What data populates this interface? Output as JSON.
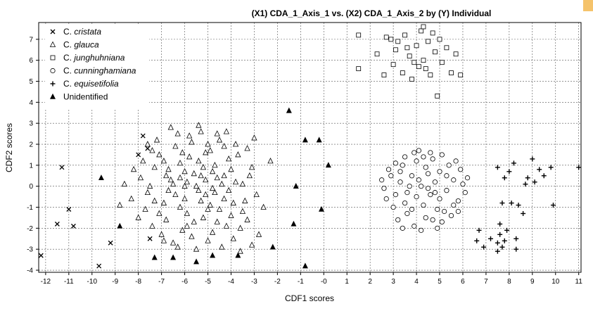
{
  "chart_data": {
    "type": "scatter",
    "title": "(X1) CDA_1_Axis_1 vs. (X2) CDA_1_Axis_2 by (Y) Individual",
    "xlabel": "CDF1 scores",
    "ylabel": "CDF2 scores",
    "xlim": [
      -12.3,
      11.1
    ],
    "ylim": [
      -4.1,
      7.8
    ],
    "xticks": [
      -12,
      -11,
      -10,
      -9,
      -8,
      -7,
      -6,
      -5,
      -4,
      -3,
      -2,
      -1,
      0,
      1,
      2,
      3,
      4,
      5,
      6,
      7,
      8,
      9,
      10,
      11
    ],
    "xtick_labels": [
      "-12",
      "-11",
      "-10",
      "-9",
      "-8",
      "-7",
      "-6",
      "-5",
      "-4",
      "-3",
      "-2",
      "-1",
      "-0",
      "1",
      "2",
      "3",
      "4",
      "5",
      "6",
      "7",
      "8",
      "9",
      "10",
      "11"
    ],
    "yticks": [
      -4,
      -3,
      -2,
      -1,
      0,
      1,
      2,
      3,
      4,
      5,
      6,
      7
    ],
    "grid": true,
    "legend_position": "top-left",
    "series": [
      {
        "name": "C. cristata",
        "marker": "x",
        "points": [
          [
            -11.3,
            0.9
          ],
          [
            -11.5,
            -1.8
          ],
          [
            -11.0,
            -1.1
          ],
          [
            -10.8,
            -1.9
          ],
          [
            -12.2,
            -3.3
          ],
          [
            -9.7,
            -3.8
          ],
          [
            -9.2,
            -2.7
          ],
          [
            -8.0,
            1.5
          ],
          [
            -7.8,
            2.4
          ],
          [
            -7.5,
            -2.5
          ],
          [
            -7.6,
            1.8
          ]
        ]
      },
      {
        "name": "C. glauca",
        "marker": "triangle",
        "points": [
          [
            -5.4,
            -0.2
          ],
          [
            -6.2,
            1.1
          ],
          [
            -4.8,
            0.7
          ],
          [
            -5.9,
            -1.3
          ],
          [
            -6.6,
            0.3
          ],
          [
            -4.3,
            -0.6
          ],
          [
            -5.1,
            1.6
          ],
          [
            -6.9,
            -0.8
          ],
          [
            -5.7,
            2.1
          ],
          [
            -4.6,
            -1.7
          ],
          [
            -7.3,
            0.9
          ],
          [
            -3.8,
            0.2
          ],
          [
            -6.1,
            -2.1
          ],
          [
            -5.3,
            2.6
          ],
          [
            -4.1,
            1.3
          ],
          [
            -7.6,
            -0.3
          ],
          [
            -3.5,
            -1.2
          ],
          [
            -6.4,
            1.9
          ],
          [
            -5.0,
            -2.6
          ],
          [
            -4.5,
            2.2
          ],
          [
            -7.9,
            0.4
          ],
          [
            -3.1,
            0.9
          ],
          [
            -6.8,
            -1.6
          ],
          [
            -5.6,
            0.6
          ],
          [
            -4.9,
            -0.9
          ],
          [
            -6.0,
            0.0
          ],
          [
            -5.2,
            -1.5
          ],
          [
            -4.4,
            0.1
          ],
          [
            -7.1,
            1.5
          ],
          [
            -3.6,
            -2.0
          ],
          [
            -6.5,
            -2.7
          ],
          [
            -5.8,
            1.4
          ],
          [
            -4.0,
            -1.4
          ],
          [
            -7.4,
            -1.9
          ],
          [
            -3.3,
            1.8
          ],
          [
            -5.5,
            -3.0
          ],
          [
            -6.3,
            2.5
          ],
          [
            -4.7,
            1.0
          ],
          [
            -8.3,
            -0.6
          ],
          [
            -2.9,
            -0.4
          ],
          [
            -6.7,
            0.8
          ],
          [
            -5.1,
            0.3
          ],
          [
            -4.2,
            2.6
          ],
          [
            -7.7,
            -1.1
          ],
          [
            -3.9,
            -2.5
          ],
          [
            -6.0,
            -0.6
          ],
          [
            -5.4,
            1.2
          ],
          [
            -4.8,
            -2.2
          ],
          [
            -7.2,
            2.2
          ],
          [
            -3.2,
            0.5
          ],
          [
            -6.2,
            -1.0
          ],
          [
            -5.7,
            -2.4
          ],
          [
            -4.3,
            0.5
          ],
          [
            -8.6,
            0.1
          ],
          [
            -2.6,
            -1.0
          ],
          [
            -6.9,
            1.2
          ],
          [
            -5.9,
            0.2
          ],
          [
            -4.6,
            0.4
          ],
          [
            -7.0,
            -2.3
          ],
          [
            -3.7,
            1.5
          ],
          [
            -6.4,
            -0.4
          ],
          [
            -5.3,
            -0.7
          ],
          [
            -4.1,
            -0.2
          ],
          [
            -8.0,
            -1.5
          ],
          [
            -3.0,
            2.3
          ],
          [
            -6.6,
            2.8
          ],
          [
            -5.0,
            2.0
          ],
          [
            -4.4,
            -2.9
          ],
          [
            -7.5,
            0.0
          ],
          [
            -3.4,
            -0.7
          ],
          [
            -6.1,
            1.6
          ],
          [
            -5.6,
            -1.7
          ],
          [
            -4.9,
            1.7
          ],
          [
            -7.8,
            1.2
          ],
          [
            -3.6,
            -3.1
          ],
          [
            -6.8,
            0.5
          ],
          [
            -5.2,
            0.9
          ],
          [
            -4.0,
            0.8
          ],
          [
            -8.8,
            -0.9
          ],
          [
            -2.3,
            1.2
          ],
          [
            -6.3,
            -2.9
          ],
          [
            -5.8,
            2.4
          ],
          [
            -4.5,
            -1.1
          ],
          [
            -7.3,
            -0.7
          ],
          [
            -3.8,
            2.0
          ],
          [
            -6.0,
            0.7
          ],
          [
            -5.5,
            0.0
          ],
          [
            -4.7,
            -0.3
          ],
          [
            -7.1,
            -1.3
          ],
          [
            -3.3,
            -1.6
          ],
          [
            -6.5,
            0.1
          ],
          [
            -5.1,
            -0.4
          ],
          [
            -4.2,
            -1.9
          ],
          [
            -8.2,
            0.8
          ],
          [
            -2.8,
            -2.3
          ],
          [
            -6.7,
            -0.2
          ],
          [
            -5.4,
            2.9
          ],
          [
            -4.6,
            2.5
          ],
          [
            -7.6,
            2.0
          ],
          [
            -3.5,
            0.1
          ],
          [
            -5.9,
            -1.9
          ],
          [
            -5.0,
            -1.1
          ],
          [
            -4.3,
            1.9
          ],
          [
            -6.9,
            -2.6
          ],
          [
            -3.1,
            -2.8
          ],
          [
            -6.2,
            0.4
          ],
          [
            -5.3,
            0.5
          ],
          [
            -4.8,
            -0.1
          ],
          [
            -7.4,
            1.7
          ],
          [
            -3.9,
            -0.8
          ]
        ]
      },
      {
        "name": "C. junghuhniana",
        "marker": "square",
        "points": [
          [
            1.5,
            7.2
          ],
          [
            1.5,
            5.6
          ],
          [
            2.3,
            6.3
          ],
          [
            2.7,
            7.1
          ],
          [
            3.0,
            5.8
          ],
          [
            3.2,
            6.9
          ],
          [
            3.4,
            5.4
          ],
          [
            3.5,
            7.2
          ],
          [
            3.7,
            6.2
          ],
          [
            3.8,
            5.1
          ],
          [
            4.0,
            6.7
          ],
          [
            4.1,
            5.7
          ],
          [
            4.2,
            7.4
          ],
          [
            4.3,
            6.0
          ],
          [
            4.5,
            6.9
          ],
          [
            4.6,
            5.3
          ],
          [
            4.8,
            6.4
          ],
          [
            5.0,
            7.0
          ],
          [
            5.1,
            5.9
          ],
          [
            5.3,
            6.6
          ],
          [
            5.5,
            5.4
          ],
          [
            5.7,
            6.3
          ],
          [
            5.9,
            5.3
          ],
          [
            4.9,
            4.3
          ],
          [
            2.6,
            5.3
          ],
          [
            3.1,
            6.5
          ],
          [
            3.9,
            5.9
          ],
          [
            4.4,
            5.6
          ],
          [
            2.9,
            7.0
          ],
          [
            4.7,
            7.3
          ],
          [
            3.6,
            6.6
          ],
          [
            4.3,
            7.6
          ]
        ]
      },
      {
        "name": "C. cunninghamiana",
        "marker": "circle",
        "points": [
          [
            4.2,
            0.0
          ],
          [
            3.8,
            0.5
          ],
          [
            4.6,
            -0.4
          ],
          [
            3.5,
            -0.8
          ],
          [
            5.0,
            0.7
          ],
          [
            4.0,
            1.2
          ],
          [
            4.9,
            -1.1
          ],
          [
            3.3,
            0.2
          ],
          [
            5.3,
            -0.2
          ],
          [
            4.4,
            -1.5
          ],
          [
            3.1,
            -0.4
          ],
          [
            5.6,
            0.3
          ],
          [
            4.7,
            1.3
          ],
          [
            3.6,
            -1.3
          ],
          [
            5.1,
            -1.7
          ],
          [
            2.8,
            0.8
          ],
          [
            5.8,
            -0.7
          ],
          [
            4.1,
            1.7
          ],
          [
            3.9,
            -1.9
          ],
          [
            5.4,
            1.0
          ],
          [
            2.6,
            -0.1
          ],
          [
            6.0,
            0.1
          ],
          [
            4.5,
            0.6
          ],
          [
            3.4,
            1.0
          ],
          [
            5.2,
            -1.2
          ],
          [
            3.0,
            -1.0
          ],
          [
            5.9,
            0.8
          ],
          [
            4.3,
            -0.9
          ],
          [
            3.7,
            0.0
          ],
          [
            4.8,
            0.2
          ],
          [
            2.9,
            0.5
          ],
          [
            5.5,
            -1.4
          ],
          [
            4.0,
            -0.5
          ],
          [
            3.2,
            -1.6
          ],
          [
            5.7,
            1.2
          ],
          [
            4.6,
            1.6
          ],
          [
            3.5,
            1.4
          ],
          [
            4.9,
            -2.0
          ],
          [
            2.7,
            -0.6
          ],
          [
            6.1,
            -0.3
          ],
          [
            4.4,
            0.9
          ],
          [
            3.8,
            -1.1
          ],
          [
            5.0,
            -0.6
          ],
          [
            4.1,
            0.3
          ],
          [
            3.3,
            0.7
          ],
          [
            5.3,
            0.5
          ],
          [
            4.7,
            -1.6
          ],
          [
            3.6,
            -0.3
          ],
          [
            5.6,
            -0.9
          ],
          [
            4.2,
            -2.1
          ],
          [
            2.5,
            0.3
          ],
          [
            6.2,
            0.4
          ],
          [
            4.5,
            -0.1
          ],
          [
            3.9,
            1.6
          ],
          [
            5.1,
            1.5
          ],
          [
            3.1,
            1.1
          ],
          [
            5.8,
            -1.2
          ],
          [
            4.3,
            1.4
          ],
          [
            3.4,
            -2.0
          ],
          [
            4.8,
            -0.3
          ]
        ]
      },
      {
        "name": "C. equisetifolia",
        "marker": "plus",
        "points": [
          [
            7.5,
            0.9
          ],
          [
            8.0,
            0.7
          ],
          [
            8.2,
            1.1
          ],
          [
            8.8,
            0.4
          ],
          [
            9.0,
            1.3
          ],
          [
            9.3,
            0.8
          ],
          [
            9.5,
            0.5
          ],
          [
            9.8,
            0.9
          ],
          [
            11.0,
            0.9
          ],
          [
            8.7,
            0.1
          ],
          [
            7.7,
            -0.8
          ],
          [
            8.1,
            -0.8
          ],
          [
            8.4,
            -0.9
          ],
          [
            8.6,
            -1.3
          ],
          [
            7.6,
            -1.8
          ],
          [
            7.9,
            -2.1
          ],
          [
            7.2,
            -2.5
          ],
          [
            7.5,
            -2.7
          ],
          [
            7.7,
            -2.9
          ],
          [
            8.3,
            -2.5
          ],
          [
            8.3,
            -3.0
          ],
          [
            6.9,
            -2.9
          ],
          [
            6.7,
            -2.1
          ],
          [
            6.6,
            -2.6
          ],
          [
            7.8,
            0.4
          ],
          [
            9.1,
            0.2
          ],
          [
            9.9,
            -0.9
          ],
          [
            7.6,
            -2.3
          ],
          [
            7.8,
            -2.6
          ],
          [
            7.5,
            -3.1
          ]
        ]
      },
      {
        "name": "Unidentified",
        "marker": "filled-triangle",
        "points": [
          [
            -1.5,
            3.6
          ],
          [
            -0.8,
            2.2
          ],
          [
            -0.2,
            2.2
          ],
          [
            0.2,
            1.0
          ],
          [
            -1.2,
            0.0
          ],
          [
            -0.1,
            -1.1
          ],
          [
            -1.3,
            -1.8
          ],
          [
            -2.2,
            -2.9
          ],
          [
            -3.7,
            -3.3
          ],
          [
            -4.8,
            -3.3
          ],
          [
            -5.5,
            -3.6
          ],
          [
            -6.5,
            -3.4
          ],
          [
            -7.3,
            -3.4
          ],
          [
            -8.8,
            -1.9
          ],
          [
            -9.6,
            0.4
          ],
          [
            -0.8,
            -3.8
          ]
        ]
      }
    ]
  }
}
